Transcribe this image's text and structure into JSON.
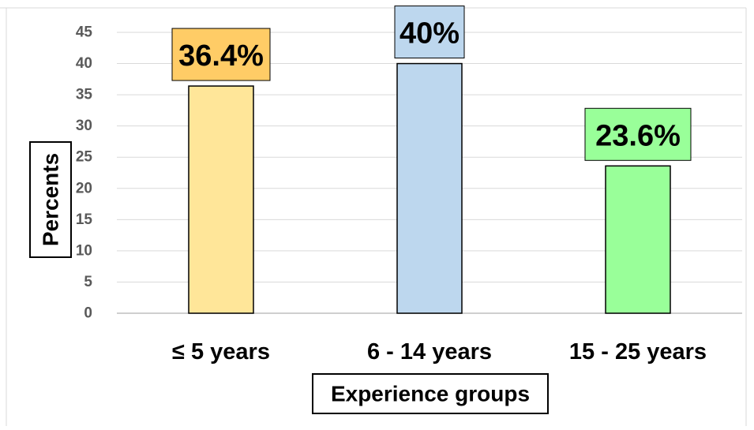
{
  "chart_data": {
    "type": "bar",
    "categories": [
      "≤ 5 years",
      "6 - 14 years",
      "15 - 25 years"
    ],
    "values": [
      36.4,
      40,
      23.6
    ],
    "data_labels": [
      "36.4%",
      "40%",
      "23.6%"
    ],
    "title": "",
    "xlabel": "Experience groups",
    "ylabel": "Percents",
    "ylim": [
      0,
      45
    ],
    "yticks": [
      0,
      5,
      10,
      15,
      20,
      25,
      30,
      35,
      40,
      45
    ],
    "grid": true,
    "colors": {
      "bars": [
        "#FFE699",
        "#BDD7EE",
        "#99FF99"
      ],
      "label_boxes": [
        "#FFCC66",
        "#BDD7EE",
        "#99FF99"
      ],
      "grid": "#D9D9D9",
      "tick_text": "#595959"
    }
  }
}
